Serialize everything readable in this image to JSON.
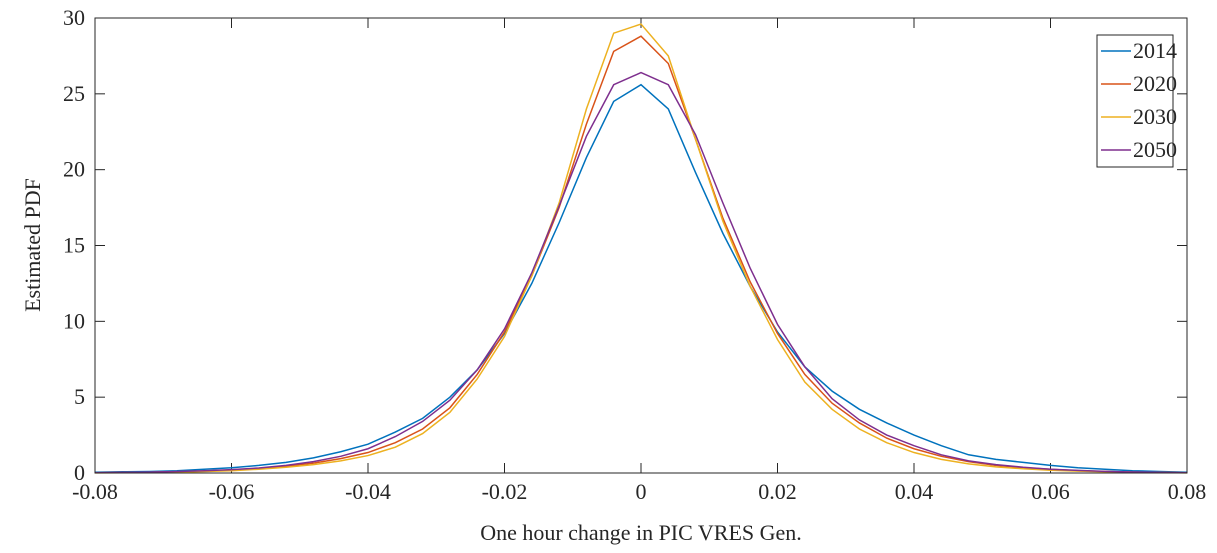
{
  "chart_data": {
    "type": "line",
    "xlabel": "One hour change in PIC VRES Gen.",
    "ylabel": "Estimated PDF",
    "x": [
      -0.08,
      -0.076,
      -0.072,
      -0.068,
      -0.064,
      -0.06,
      -0.056,
      -0.052,
      -0.048,
      -0.044,
      -0.04,
      -0.036,
      -0.032,
      -0.028,
      -0.024,
      -0.02,
      -0.016,
      -0.012,
      -0.008,
      -0.004,
      0,
      0.004,
      0.008,
      0.012,
      0.016,
      0.02,
      0.024,
      0.028,
      0.032,
      0.036,
      0.04,
      0.044,
      0.048,
      0.052,
      0.056,
      0.06,
      0.064,
      0.068,
      0.072,
      0.076,
      0.08
    ],
    "series": [
      {
        "name": "2014",
        "color": "#0072BD",
        "values": [
          0.05,
          0.08,
          0.1,
          0.15,
          0.25,
          0.35,
          0.5,
          0.7,
          1.0,
          1.4,
          1.9,
          2.7,
          3.6,
          5.0,
          6.8,
          9.2,
          12.5,
          16.5,
          20.8,
          24.5,
          25.6,
          24.0,
          19.8,
          15.8,
          12.3,
          9.3,
          7.0,
          5.4,
          4.2,
          3.3,
          2.5,
          1.8,
          1.2,
          0.9,
          0.7,
          0.5,
          0.35,
          0.25,
          0.15,
          0.1,
          0.05
        ]
      },
      {
        "name": "2020",
        "color": "#D95319",
        "values": [
          0.02,
          0.03,
          0.05,
          0.08,
          0.12,
          0.2,
          0.3,
          0.45,
          0.65,
          0.95,
          1.35,
          2.0,
          2.9,
          4.3,
          6.5,
          9.3,
          13.0,
          17.5,
          23.0,
          27.8,
          28.8,
          27.0,
          22.0,
          16.8,
          12.6,
          9.2,
          6.5,
          4.6,
          3.3,
          2.3,
          1.6,
          1.1,
          0.75,
          0.5,
          0.35,
          0.25,
          0.15,
          0.1,
          0.06,
          0.04,
          0.02
        ]
      },
      {
        "name": "2030",
        "color": "#EDB120",
        "values": [
          0.01,
          0.02,
          0.04,
          0.06,
          0.1,
          0.15,
          0.25,
          0.38,
          0.55,
          0.8,
          1.15,
          1.7,
          2.6,
          4.0,
          6.2,
          9.0,
          13.0,
          17.8,
          24.0,
          29.0,
          29.6,
          27.5,
          22.0,
          16.6,
          12.3,
          8.8,
          6.0,
          4.2,
          2.9,
          2.0,
          1.35,
          0.9,
          0.6,
          0.4,
          0.28,
          0.18,
          0.12,
          0.08,
          0.05,
          0.03,
          0.01
        ]
      },
      {
        "name": "2050",
        "color": "#7E2F8E",
        "values": [
          0.02,
          0.04,
          0.06,
          0.1,
          0.15,
          0.22,
          0.33,
          0.5,
          0.75,
          1.1,
          1.6,
          2.4,
          3.4,
          4.8,
          6.8,
          9.5,
          13.2,
          17.6,
          22.2,
          25.6,
          26.4,
          25.6,
          22.3,
          17.8,
          13.5,
          9.8,
          7.0,
          4.9,
          3.5,
          2.5,
          1.8,
          1.2,
          0.8,
          0.55,
          0.38,
          0.25,
          0.17,
          0.11,
          0.07,
          0.04,
          0.02
        ]
      }
    ],
    "xlim": [
      -0.08,
      0.08
    ],
    "xticks": [
      -0.08,
      -0.06,
      -0.04,
      -0.02,
      0,
      0.02,
      0.04,
      0.06,
      0.08
    ],
    "ylim": [
      0,
      30
    ],
    "yticks": [
      0,
      5,
      10,
      15,
      20,
      25,
      30
    ],
    "legend": "northeast",
    "grid": false
  }
}
